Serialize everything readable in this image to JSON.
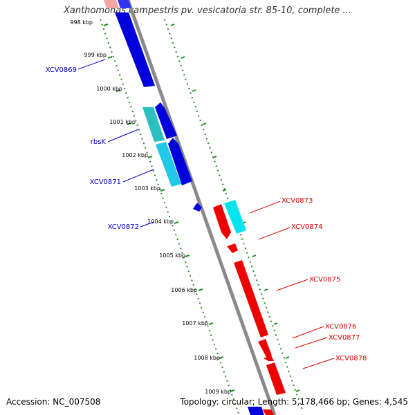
{
  "title": "Xanthomonas campestris pv. vesicatoria str. 85-10, complete ...",
  "footer": {
    "accession": "Accession: NC_007508",
    "topology": "Topology: circular; Length: 5,178,466 bp; Genes: 4,545"
  },
  "colors": {
    "forward": "#0000dd",
    "forward_alt": "#33cccc",
    "reverse": "#ee0000",
    "reverse_alt": "#00e5ee",
    "backbone": "#888888",
    "ticks": "#228b22",
    "forward_label": "#0000cc",
    "reverse_label": "#dd0000"
  },
  "scale": {
    "unit": "kbp",
    "labels": [
      "998 kbp",
      "999 kbp",
      "1000 kbp",
      "1001 kbp",
      "1002 kbp",
      "1003 kbp",
      "1004 kbp",
      "1005 kbp",
      "1006 kbp",
      "1007 kbp",
      "1008 kbp",
      "1009 kbp"
    ]
  },
  "gene_labels": {
    "forward": [
      "XCV0869",
      "rbsK",
      "XCV0871",
      "XCV0872"
    ],
    "reverse": [
      "XCV0873",
      "XCV0874",
      "XCV0875",
      "XCV0876",
      "XCV0877",
      "XCV0878"
    ]
  }
}
